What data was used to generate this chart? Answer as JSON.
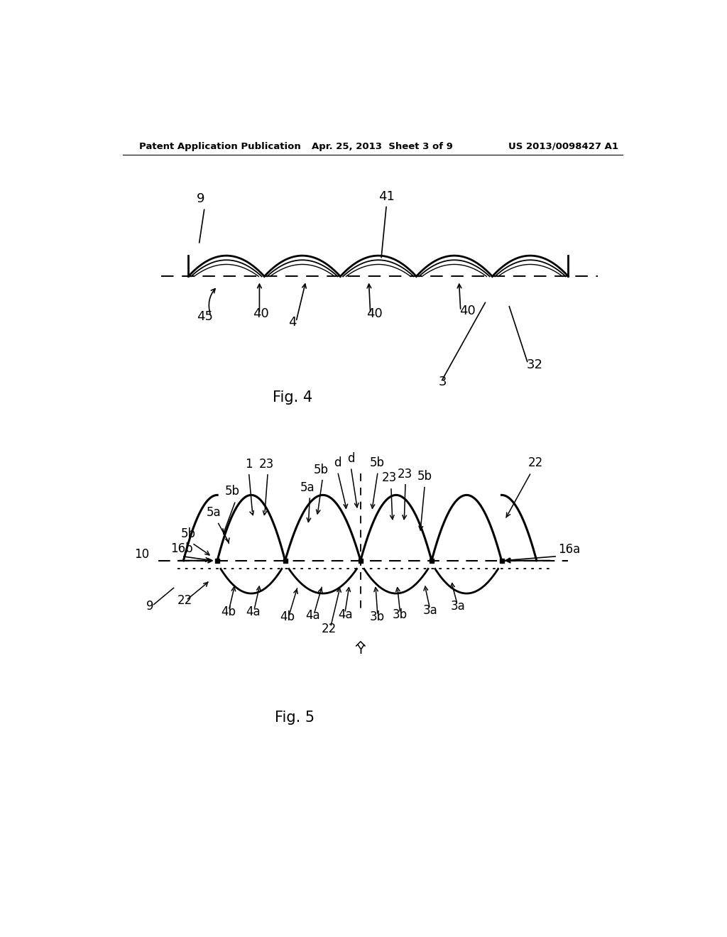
{
  "bg_color": "#ffffff",
  "header_left": "Patent Application Publication",
  "header_center": "Apr. 25, 2013  Sheet 3 of 9",
  "header_right": "US 2013/0098427 A1",
  "fig4_label": "Fig. 4",
  "fig5_label": "Fig. 5"
}
